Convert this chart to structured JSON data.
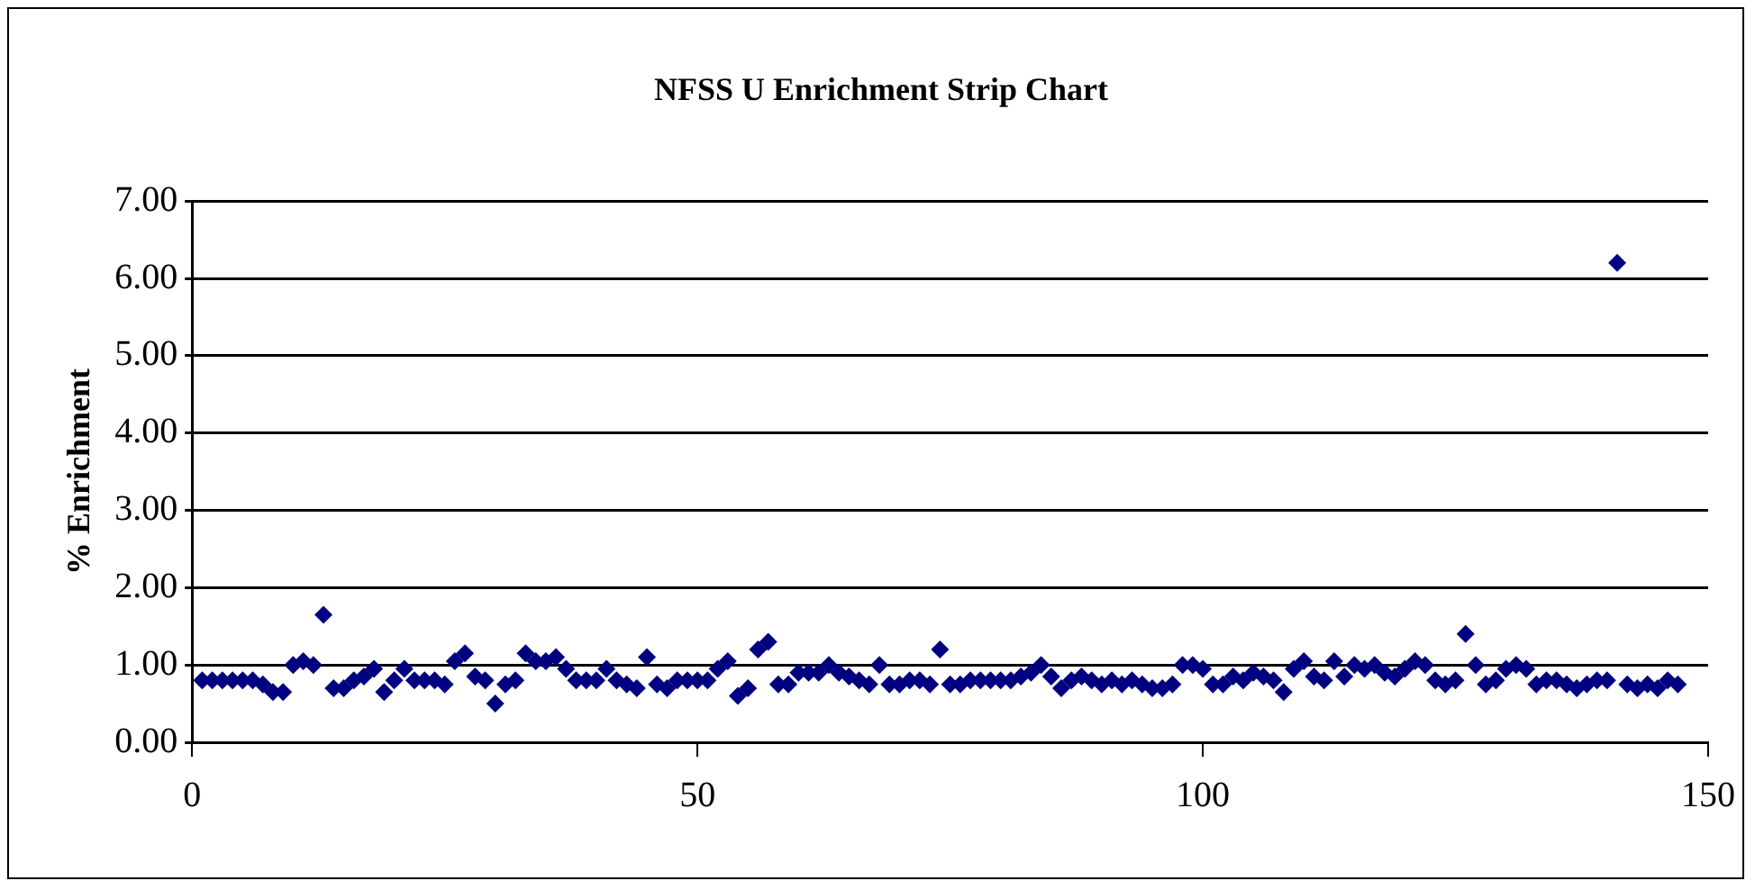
{
  "chart_data": {
    "type": "scatter",
    "title": "NFSS U Enrichment Strip Chart",
    "ylabel": "% Enrichment",
    "x": [
      1,
      2,
      3,
      4,
      5,
      6,
      7,
      8,
      9,
      10,
      11,
      12,
      13,
      14,
      15,
      16,
      17,
      18,
      19,
      20,
      21,
      22,
      23,
      24,
      25,
      26,
      27,
      28,
      29,
      30,
      31,
      32,
      33,
      34,
      35,
      36,
      37,
      38,
      39,
      40,
      41,
      42,
      43,
      44,
      45,
      46,
      47,
      48,
      49,
      50,
      51,
      52,
      53,
      54,
      55,
      56,
      57,
      58,
      59,
      60,
      61,
      62,
      63,
      64,
      65,
      66,
      67,
      68,
      69,
      70,
      71,
      72,
      73,
      74,
      75,
      76,
      77,
      78,
      79,
      80,
      81,
      82,
      83,
      84,
      85,
      86,
      87,
      88,
      89,
      90,
      91,
      92,
      93,
      94,
      95,
      96,
      97,
      98,
      99,
      100,
      101,
      102,
      103,
      104,
      105,
      106,
      107,
      108,
      109,
      110,
      111,
      112,
      113,
      114,
      115,
      116,
      117,
      118,
      119,
      120,
      121,
      122,
      123,
      124,
      125,
      126,
      127,
      128,
      129,
      130,
      131,
      132,
      133,
      134,
      135,
      136,
      137,
      138,
      139,
      140,
      141,
      142,
      143,
      144,
      145,
      146,
      147
    ],
    "series": [
      {
        "color": "#000080",
        "values": [
          0.8,
          0.8,
          0.8,
          0.8,
          0.8,
          0.8,
          0.75,
          0.65,
          0.65,
          1.0,
          1.05,
          1.0,
          1.65,
          0.7,
          0.7,
          0.8,
          0.85,
          0.95,
          0.65,
          0.8,
          0.95,
          0.8,
          0.8,
          0.8,
          0.75,
          1.05,
          1.15,
          0.85,
          0.8,
          0.5,
          0.75,
          0.8,
          1.15,
          1.05,
          1.05,
          1.1,
          0.95,
          0.8,
          0.8,
          0.8,
          0.95,
          0.8,
          0.75,
          0.7,
          1.1,
          0.75,
          0.7,
          0.8,
          0.8,
          0.8,
          0.8,
          0.95,
          1.05,
          0.6,
          0.7,
          1.2,
          1.3,
          0.75,
          0.75,
          0.9,
          0.9,
          0.9,
          1.0,
          0.9,
          0.85,
          0.8,
          0.75,
          1.0,
          0.75,
          0.75,
          0.8,
          0.8,
          0.75,
          1.2,
          0.75,
          0.75,
          0.8,
          0.8,
          0.8,
          0.8,
          0.8,
          0.85,
          0.9,
          1.0,
          0.85,
          0.7,
          0.8,
          0.85,
          0.8,
          0.75,
          0.8,
          0.75,
          0.8,
          0.75,
          0.7,
          0.7,
          0.75,
          1.0,
          1.0,
          0.95,
          0.75,
          0.75,
          0.85,
          0.8,
          0.9,
          0.85,
          0.8,
          0.65,
          0.95,
          1.05,
          0.85,
          0.8,
          1.05,
          0.85,
          1.0,
          0.95,
          1.0,
          0.9,
          0.85,
          0.95,
          1.05,
          1.0,
          0.8,
          0.75,
          0.8,
          1.4,
          1.0,
          0.75,
          0.8,
          0.95,
          1.0,
          0.95,
          0.75,
          0.8,
          0.8,
          0.75,
          0.7,
          0.75,
          0.8,
          0.8,
          6.2,
          0.75,
          0.7,
          0.75,
          0.7,
          0.8,
          0.75
        ]
      }
    ],
    "xlim": [
      0,
      150
    ],
    "xticks": [
      0,
      50,
      100,
      150
    ],
    "ylim": [
      0,
      7
    ],
    "yticks": [
      {
        "value": 0,
        "label": "0.00"
      },
      {
        "value": 1,
        "label": "1.00"
      },
      {
        "value": 2,
        "label": "2.00"
      },
      {
        "value": 3,
        "label": "3.00"
      },
      {
        "value": 4,
        "label": "4.00"
      },
      {
        "value": 5,
        "label": "5.00"
      },
      {
        "value": 6,
        "label": "6.00"
      },
      {
        "value": 7,
        "label": "7.00"
      }
    ],
    "grid": "y",
    "legend": false,
    "marker": "diamond"
  }
}
